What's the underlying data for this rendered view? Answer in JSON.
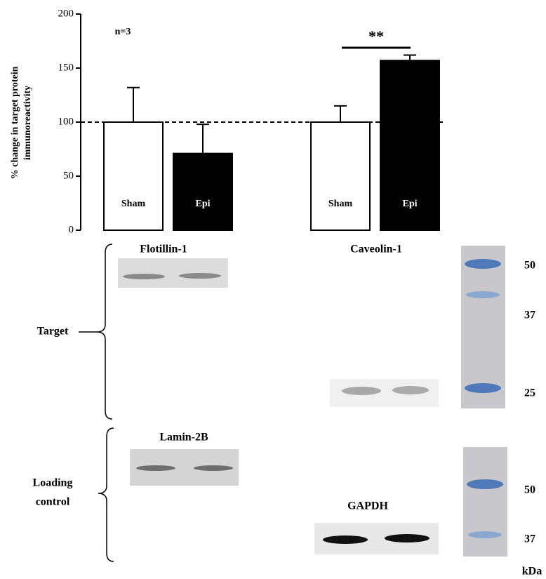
{
  "chart_data": {
    "type": "bar",
    "y_label": [
      "% change in target protein",
      "immunoreactivity"
    ],
    "categories": [
      "Sham",
      "Epi",
      "Sham",
      "Epi"
    ],
    "values": [
      100,
      71,
      100,
      157
    ],
    "errors": [
      32,
      27,
      15,
      5
    ],
    "colors": [
      "#ffffff",
      "#000000",
      "#ffffff",
      "#000000"
    ],
    "ylim": [
      0,
      200
    ],
    "yticks": [
      0,
      50,
      100,
      150,
      200
    ],
    "reference_line": 100,
    "annotations": [
      "n=3",
      "**"
    ]
  },
  "blots": {
    "target_label": "Target",
    "loading_label": [
      "Loading",
      "control"
    ],
    "names": [
      "Flotillin-1",
      "Caveolin-1",
      "Lamin-2B",
      "GAPDH"
    ],
    "ladder_top": [
      "50",
      "37",
      "25"
    ],
    "ladder_bottom": [
      "50",
      "37"
    ],
    "unit": "kDa"
  }
}
